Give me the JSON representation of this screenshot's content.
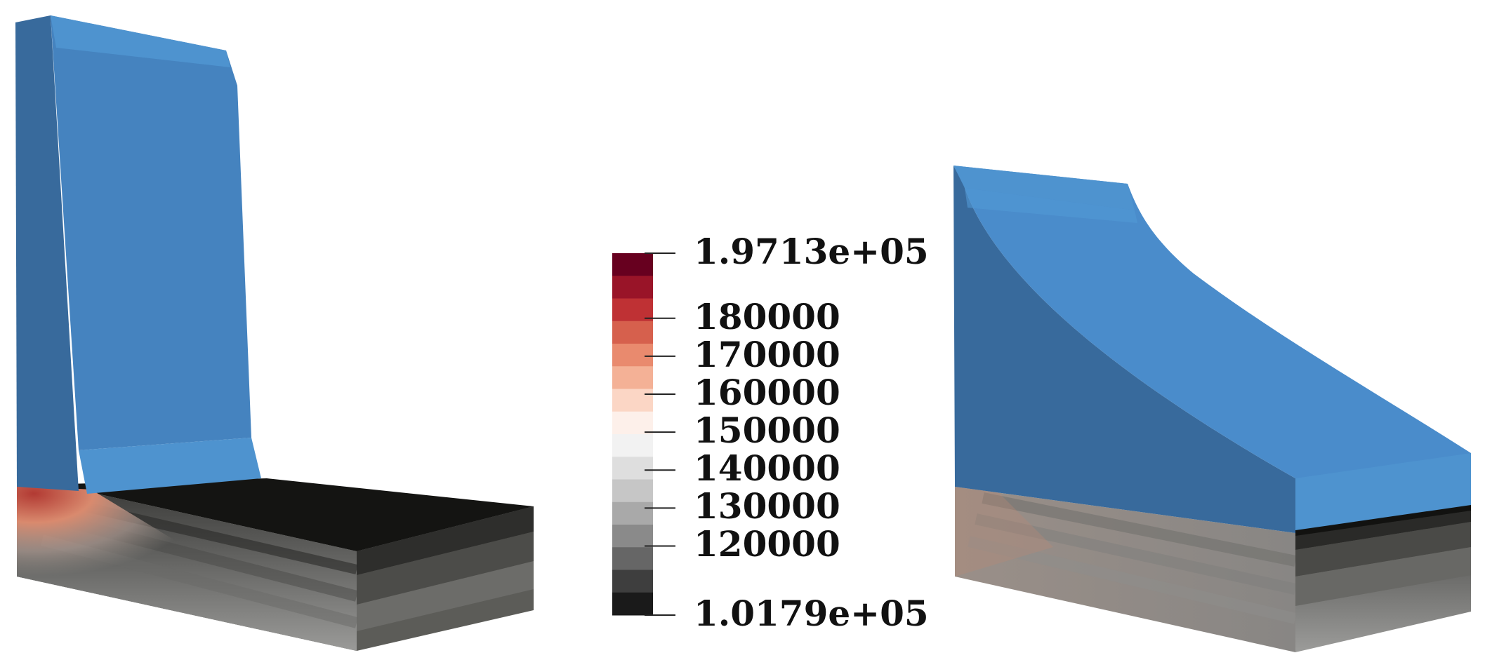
{
  "colorbar": {
    "max_label": "1.9713e+05",
    "min_label": "1.0179e+05",
    "max_value": 197130,
    "min_value": 101790,
    "ticks": [
      {
        "value": 180000,
        "label": "180000"
      },
      {
        "value": 170000,
        "label": "170000"
      },
      {
        "value": 160000,
        "label": "160000"
      },
      {
        "value": 150000,
        "label": "150000"
      },
      {
        "value": 140000,
        "label": "140000"
      },
      {
        "value": 130000,
        "label": "130000"
      },
      {
        "value": 120000,
        "label": "120000"
      }
    ],
    "band_colors_top_to_bottom": [
      "#67001f",
      "#991428",
      "#bf3134",
      "#d6604d",
      "#e98a6e",
      "#f4b196",
      "#fbd6c5",
      "#fdf0ea",
      "#f2f2f2",
      "#dedede",
      "#c6c6c6",
      "#a9a9a9",
      "#8a8a8a",
      "#666666",
      "#3e3e3e",
      "#1a1a1a"
    ]
  },
  "colors": {
    "dam_light": "#4e93cf",
    "dam_mid": "#4583bf",
    "dam_dark": "#386a9c",
    "hot": "#c9483a",
    "foundation_dark": "#141412"
  }
}
